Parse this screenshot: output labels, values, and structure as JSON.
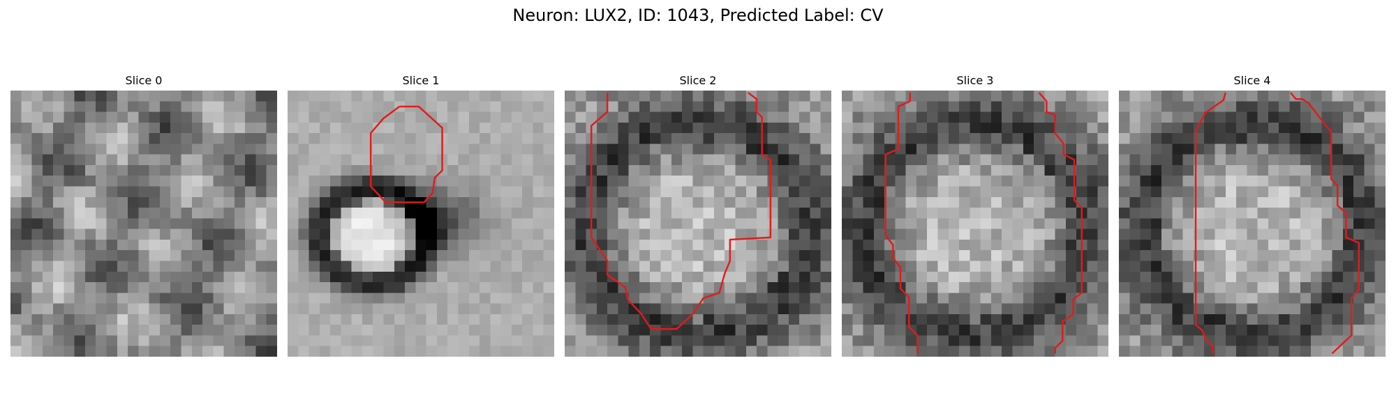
{
  "figure": {
    "title": "Neuron: LUX2, ID: 1043, Predicted Label: CV",
    "contour_color": "#e31a1c",
    "colormap": "gray",
    "grid_size": 25
  },
  "slices": [
    {
      "label": "Slice 0",
      "seed": 11,
      "pattern": "texture",
      "has_contour": false
    },
    {
      "label": "Slice 1",
      "seed": 23,
      "pattern": "cell",
      "has_contour": true
    },
    {
      "label": "Slice 2",
      "seed": 37,
      "pattern": "blob",
      "has_contour": true
    },
    {
      "label": "Slice 3",
      "seed": 51,
      "pattern": "blob",
      "has_contour": true
    },
    {
      "label": "Slice 4",
      "seed": 73,
      "pattern": "blob",
      "has_contour": true
    }
  ]
}
